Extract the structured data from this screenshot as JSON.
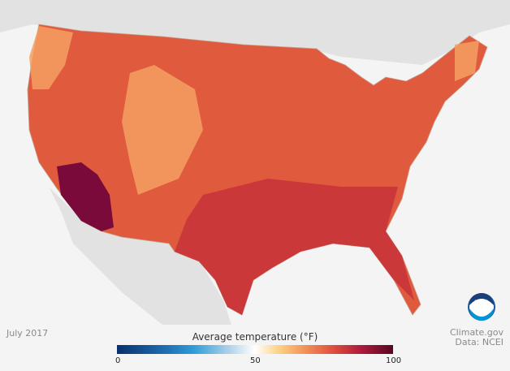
{
  "map": {
    "subject": "Contiguous United States",
    "colors": {
      "background": "#f4f4f4",
      "neighbor_land": "#e2e2e2",
      "base_fill": "#e05a3e",
      "hot_southwest": "#7a0a3a",
      "south": "#c9343a",
      "cool_mountains": "#f4a062"
    }
  },
  "date": "July 2017",
  "credit": {
    "line1": "Climate.gov",
    "line2": "Data: NCEI"
  },
  "legend": {
    "title": "Average temperature (°F)",
    "min": "0",
    "mid": "50",
    "max": "100"
  },
  "logo": {
    "text": "NOAA"
  }
}
